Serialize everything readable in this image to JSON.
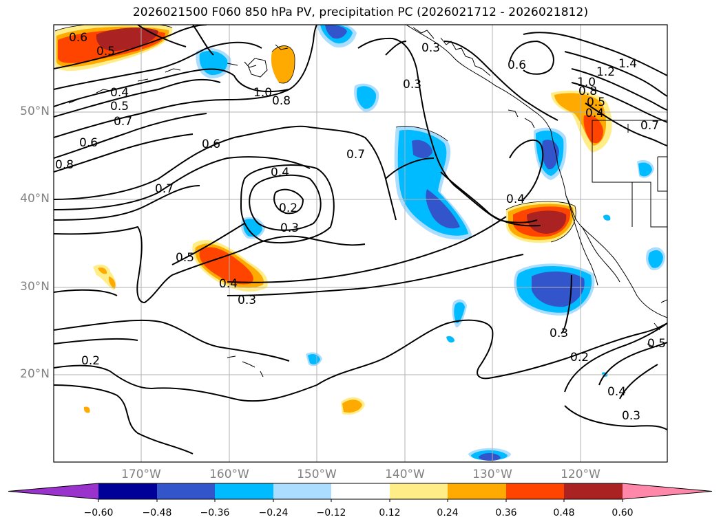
{
  "title": "2026021500 F060 850 hPa PV, precipitation PC (2026021712 - 2026021812)",
  "axes": {
    "lat_labels": [
      "50°N",
      "40°N",
      "30°N",
      "20°N"
    ],
    "lon_labels": [
      "170°W",
      "160°W",
      "150°W",
      "140°W",
      "130°W",
      "120°W"
    ]
  },
  "colorbar": {
    "ticks": [
      "−0.60",
      "−0.48",
      "−0.36",
      "−0.24",
      "−0.12",
      "0.12",
      "0.24",
      "0.36",
      "0.48",
      "0.60"
    ],
    "colors": [
      "#9933cc",
      "#000099",
      "#3355cc",
      "#00bbff",
      "#aaddff",
      "#ffffff",
      "#ffee88",
      "#ffaa00",
      "#ff4400",
      "#aa2222",
      "#ff88aa"
    ]
  },
  "pv_contour_labels": [
    "0.6",
    "0.5",
    "0.4",
    "0.5",
    "0.7",
    "0.6",
    "0.8",
    "1.0",
    "0.8",
    "0.6",
    "0.7",
    "0.4",
    "0.2",
    "0.3",
    "0.5",
    "0.4",
    "0.3",
    "0.2",
    "0.3",
    "0.7",
    "0.3",
    "0.6",
    "1.2",
    "1.4",
    "1.0",
    "0.8",
    "0.5",
    "0.4",
    "0.7",
    "0.4",
    "0.3",
    "0.2",
    "0.5",
    "0.4",
    "0.3"
  ]
}
